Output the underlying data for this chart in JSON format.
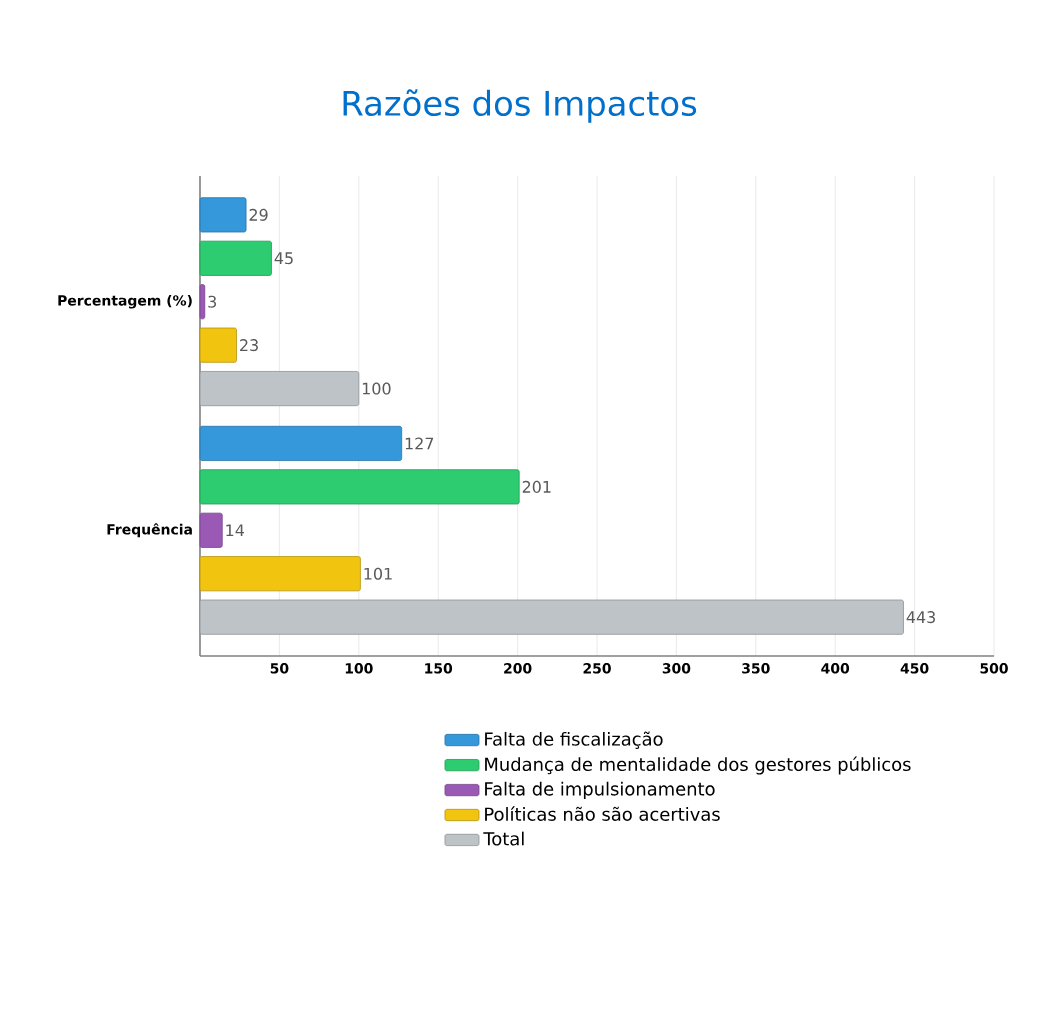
{
  "chart_data": {
    "type": "bar",
    "orientation": "horizontal",
    "title": "Razões dos Impactos",
    "categories": [
      "Percentagem (%)",
      "Frequência"
    ],
    "series": [
      {
        "name": "Falta de fiscalização",
        "color": "#3498db",
        "values": [
          29,
          127
        ]
      },
      {
        "name": "Mudança de mentalidade dos gestores públicos",
        "color": "#2ecc71",
        "values": [
          45,
          201
        ]
      },
      {
        "name": "Falta de impulsionamento",
        "color": "#9b59b6",
        "values": [
          3,
          14
        ]
      },
      {
        "name": "Políticas não são acertivas",
        "color": "#f1c40f",
        "values": [
          23,
          101
        ]
      },
      {
        "name": "Total",
        "color": "#bdc3c7",
        "values": [
          100,
          443
        ]
      }
    ],
    "xlim": [
      0,
      500
    ],
    "xticks": [
      50,
      100,
      150,
      200,
      250,
      300,
      350,
      400,
      450,
      500
    ],
    "grid": "x",
    "legend": "bottom",
    "data_labels": true
  }
}
